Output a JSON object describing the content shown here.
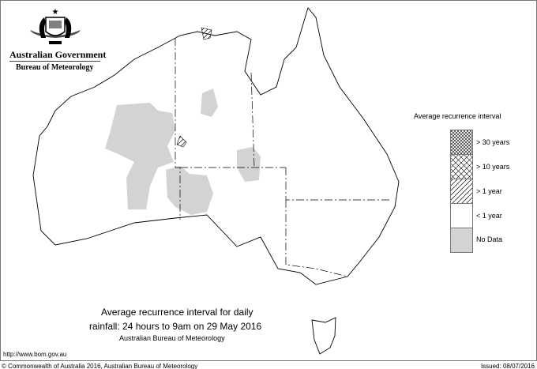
{
  "header": {
    "government": "Australian Government",
    "agency": "Bureau of Meteorology"
  },
  "legend": {
    "title": "Average recurrence interval",
    "items": [
      {
        "label": "> 30 years",
        "pattern": "dense-crosshatch"
      },
      {
        "label": "> 10 years",
        "pattern": "crosshatch"
      },
      {
        "label": "> 1 year",
        "pattern": "diagonal-hatch"
      },
      {
        "label": "< 1 year",
        "pattern": "none",
        "color": "#ffffff"
      },
      {
        "label": "No Data",
        "pattern": "solid",
        "color": "#d3d3d3"
      }
    ]
  },
  "map_title": {
    "line1": "Average recurrence interval for daily",
    "line2": "rainfall: 24 hours to 9am on 29 May 2016",
    "line3": "Australian Bureau of Meteorology"
  },
  "footer": {
    "url": "http://www.bom.gov.au",
    "copyright": "© Commonwealth of Australia 2016, Australian Bureau of Meteorology",
    "issued": "Issued: 08/07/2016"
  }
}
